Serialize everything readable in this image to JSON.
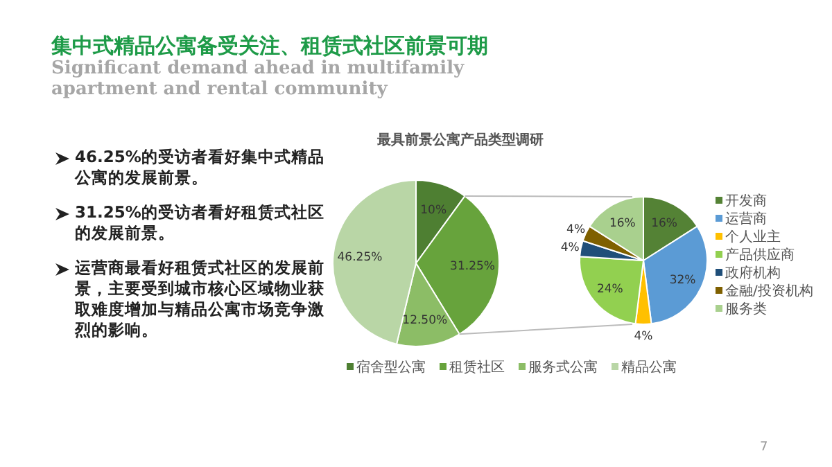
{
  "chart_data": [
    {
      "type": "other",
      "title": "集中式精品公寓备受关注、租赁式社区前景可期",
      "subtitle": "Significant demand ahead in multifamily apartment and rental community",
      "annotations": [
        "46.25%的受访者看好集中式精品公寓的发展前景。",
        "31.25%的受访者看好租赁式社区的发展前景。",
        "运营商最看好租赁式社区的发展前景，主要受到城市核心区域物业获取难度增加与精品公寓市场竞争激烈的影响。",
        "7"
      ]
    },
    {
      "type": "pie",
      "title": "最具前景公寓产品类型调研",
      "categories": [
        "宿舍型公寓",
        "租赁社区",
        "服务式公寓",
        "精品公寓"
      ],
      "values": [
        10,
        31.25,
        12.5,
        46.25
      ],
      "value_labels": [
        "10%",
        "31.25%",
        "12.50%",
        "46.25%"
      ],
      "colors": [
        "#4e7f32",
        "#67a33c",
        "#8cbd66",
        "#b9d6a6"
      ],
      "legend": "bottom"
    },
    {
      "type": "pie",
      "categories": [
        "开发商",
        "运营商",
        "个人业主",
        "产品供应商",
        "政府机构",
        "金融/投资机构",
        "服务类"
      ],
      "values": [
        16,
        32,
        4,
        24,
        4,
        4,
        16
      ],
      "value_labels": [
        "16%",
        "32%",
        "4%",
        "24%",
        "4%",
        "4%",
        "16%"
      ],
      "colors": [
        "#548235",
        "#5b9bd5",
        "#ffc000",
        "#92d050",
        "#1f4e79",
        "#7f6000",
        "#a9d08e"
      ],
      "legend": "right"
    }
  ]
}
